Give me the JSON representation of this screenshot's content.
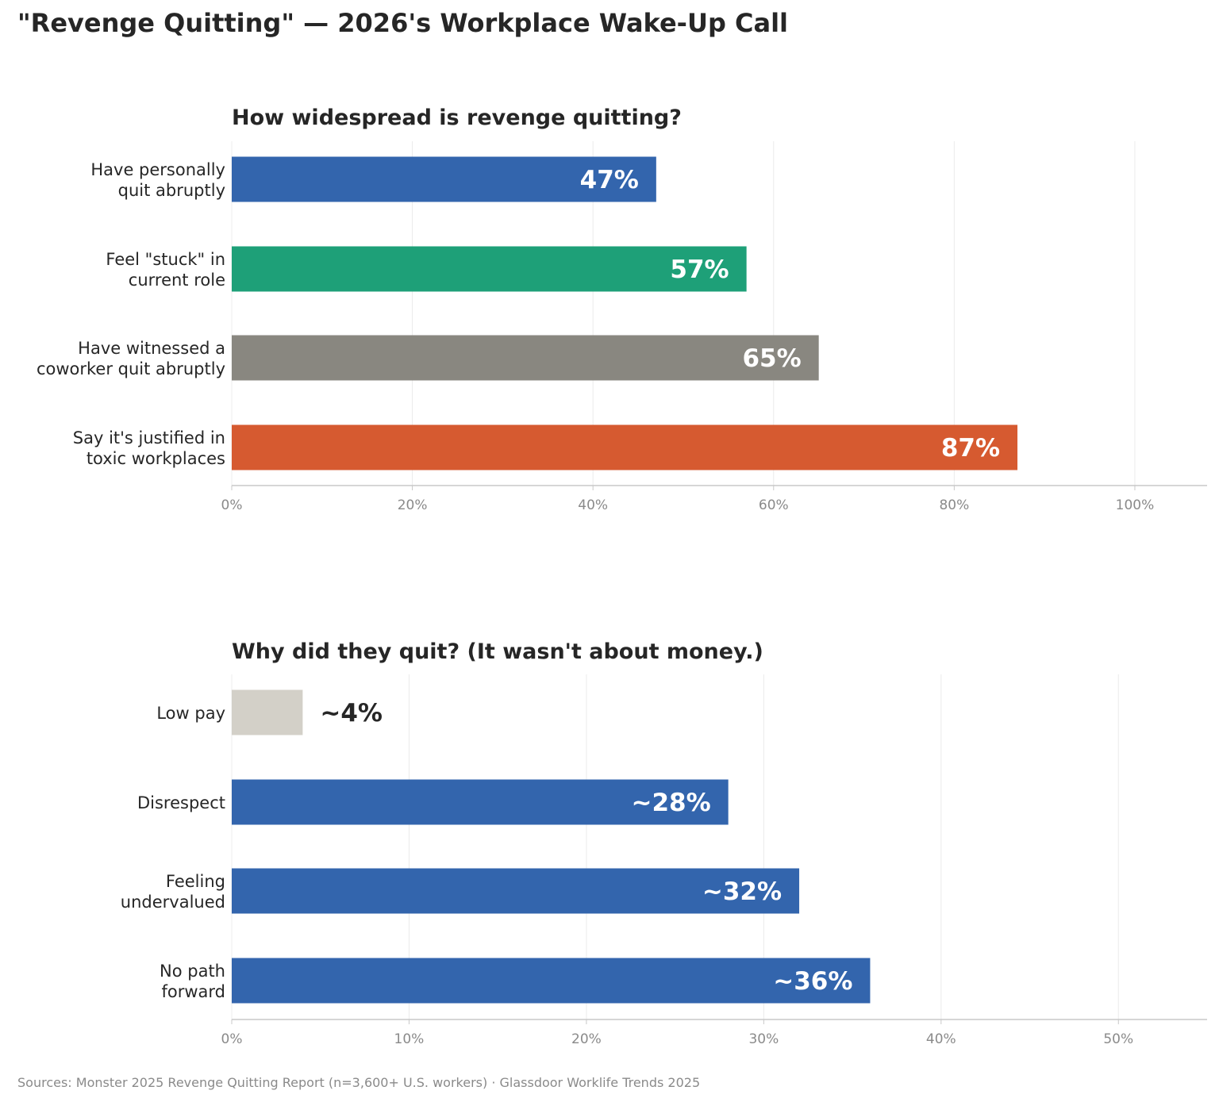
{
  "title": "\"Revenge Quitting\" — 2026's Workplace Wake-Up Call",
  "footer": "Sources: Monster 2025 Revenge Quitting Report (n=3,600+ U.S. workers)  ·  Glassdoor Worklife Trends 2025",
  "chart_data": [
    {
      "type": "bar",
      "orientation": "horizontal",
      "title": "How widespread is revenge quitting?",
      "xlabel": "",
      "ylabel": "",
      "xlim": [
        0,
        108
      ],
      "xticks": [
        0,
        20,
        40,
        60,
        80,
        100
      ],
      "tick_format": "{v}%",
      "grid": "vertical",
      "categories": [
        [
          "Have personally",
          "quit abruptly"
        ],
        [
          "Feel \"stuck\" in",
          "current role"
        ],
        [
          "Have witnessed a",
          "coworker quit abruptly"
        ],
        [
          "Say it's justified in",
          "toxic workplaces"
        ]
      ],
      "values": [
        47,
        57,
        65,
        87
      ],
      "value_labels": [
        "47%",
        "57%",
        "65%",
        "87%"
      ],
      "colors": [
        "#3365ad",
        "#1ea078",
        "#898780",
        "#d65a30"
      ],
      "label_colors": [
        "#ffffff",
        "#ffffff",
        "#ffffff",
        "#ffffff"
      ],
      "label_inside": [
        true,
        true,
        true,
        true
      ]
    },
    {
      "type": "bar",
      "orientation": "horizontal",
      "title": "Why did they quit? (It wasn't about money.)",
      "xlabel": "",
      "ylabel": "",
      "xlim": [
        0,
        55
      ],
      "xticks": [
        0,
        10,
        20,
        30,
        40,
        50
      ],
      "tick_format": "{v}%",
      "grid": "vertical",
      "categories": [
        [
          "Low pay"
        ],
        [
          "Disrespect"
        ],
        [
          "Feeling",
          "undervalued"
        ],
        [
          "No path",
          "forward"
        ]
      ],
      "values": [
        4,
        28,
        32,
        36
      ],
      "value_labels": [
        "~4%",
        "~28%",
        "~32%",
        "~36%"
      ],
      "colors": [
        "#d3d0c8",
        "#3365ad",
        "#3365ad",
        "#3365ad"
      ],
      "label_colors": [
        "#262626",
        "#ffffff",
        "#ffffff",
        "#ffffff"
      ],
      "label_inside": [
        false,
        true,
        true,
        true
      ]
    }
  ]
}
